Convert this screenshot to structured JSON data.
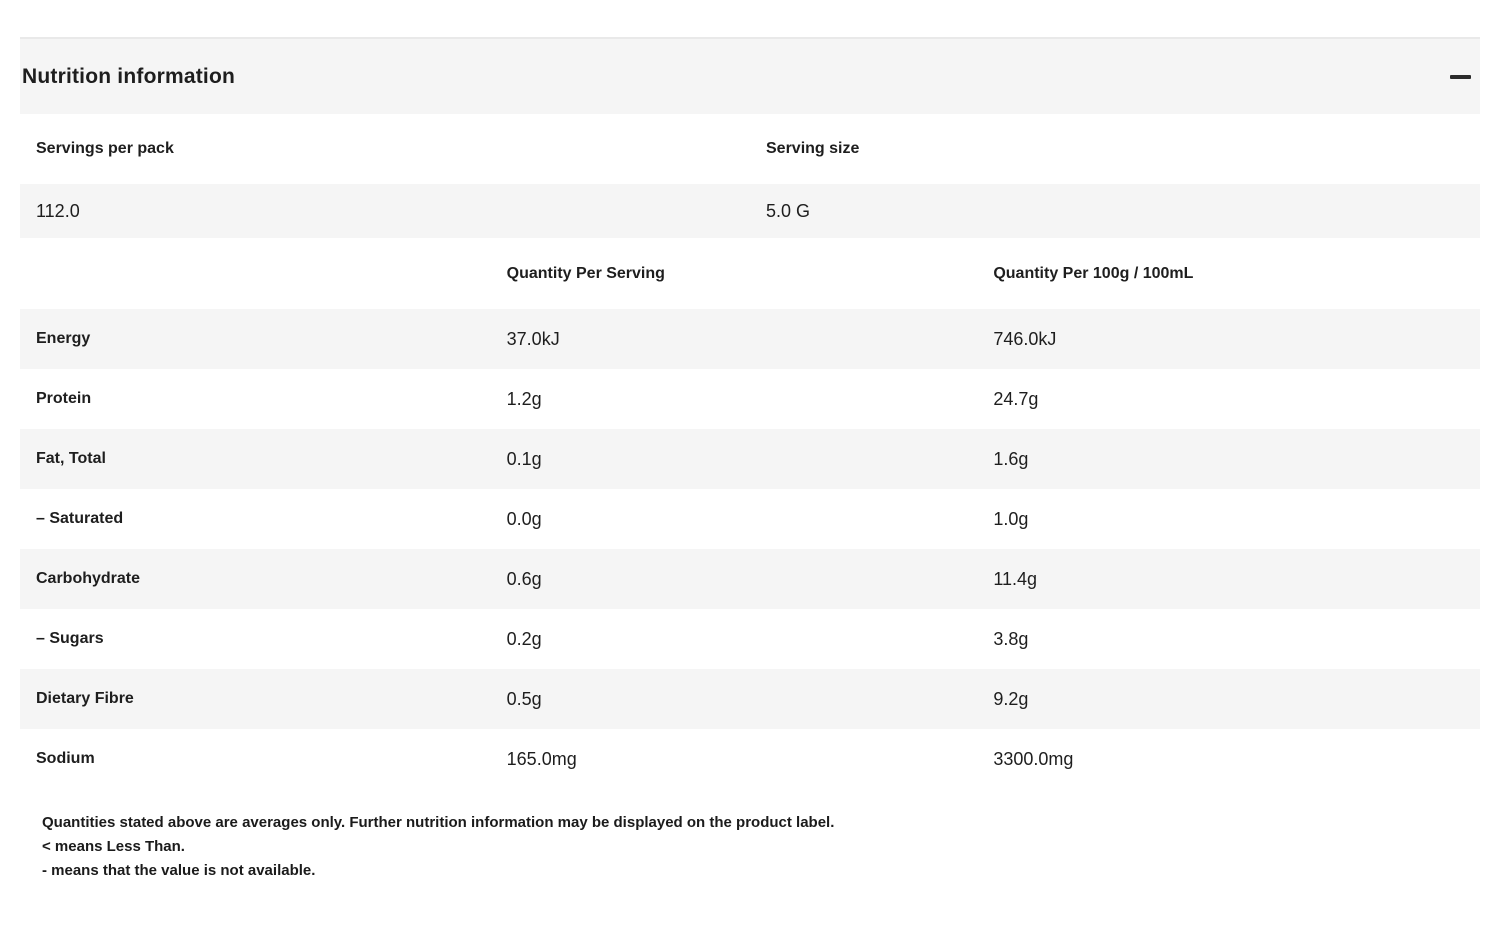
{
  "panel": {
    "title": "Nutrition information",
    "collapse_icon": "minus-icon"
  },
  "serving_info": {
    "servings_per_pack_label": "Servings per pack",
    "servings_per_pack_value": "112.0",
    "serving_size_label": "Serving size",
    "serving_size_value": "5.0 G"
  },
  "table": {
    "columns": {
      "per_serving": "Quantity Per Serving",
      "per_100g": "Quantity Per 100g / 100mL"
    },
    "rows": [
      {
        "label": "Energy",
        "per_serving": "37.0kJ",
        "per_100g": "746.0kJ"
      },
      {
        "label": "Protein",
        "per_serving": "1.2g",
        "per_100g": "24.7g"
      },
      {
        "label": "Fat, Total",
        "per_serving": "0.1g",
        "per_100g": "1.6g"
      },
      {
        "label": "– Saturated",
        "per_serving": "0.0g",
        "per_100g": "1.0g"
      },
      {
        "label": "Carbohydrate",
        "per_serving": "0.6g",
        "per_100g": "11.4g"
      },
      {
        "label": "– Sugars",
        "per_serving": "0.2g",
        "per_100g": "3.8g"
      },
      {
        "label": "Dietary Fibre",
        "per_serving": "0.5g",
        "per_100g": "9.2g"
      },
      {
        "label": "Sodium",
        "per_serving": "165.0mg",
        "per_100g": "3300.0mg"
      }
    ]
  },
  "footnotes": [
    "Quantities stated above are averages only. Further nutrition information may be displayed on the product label.",
    "< means Less Than.",
    "- means that the value is not available."
  ],
  "colors": {
    "row_shade": "#f5f5f5",
    "text": "#1e1e1e",
    "divider": "#e9e9e9"
  }
}
